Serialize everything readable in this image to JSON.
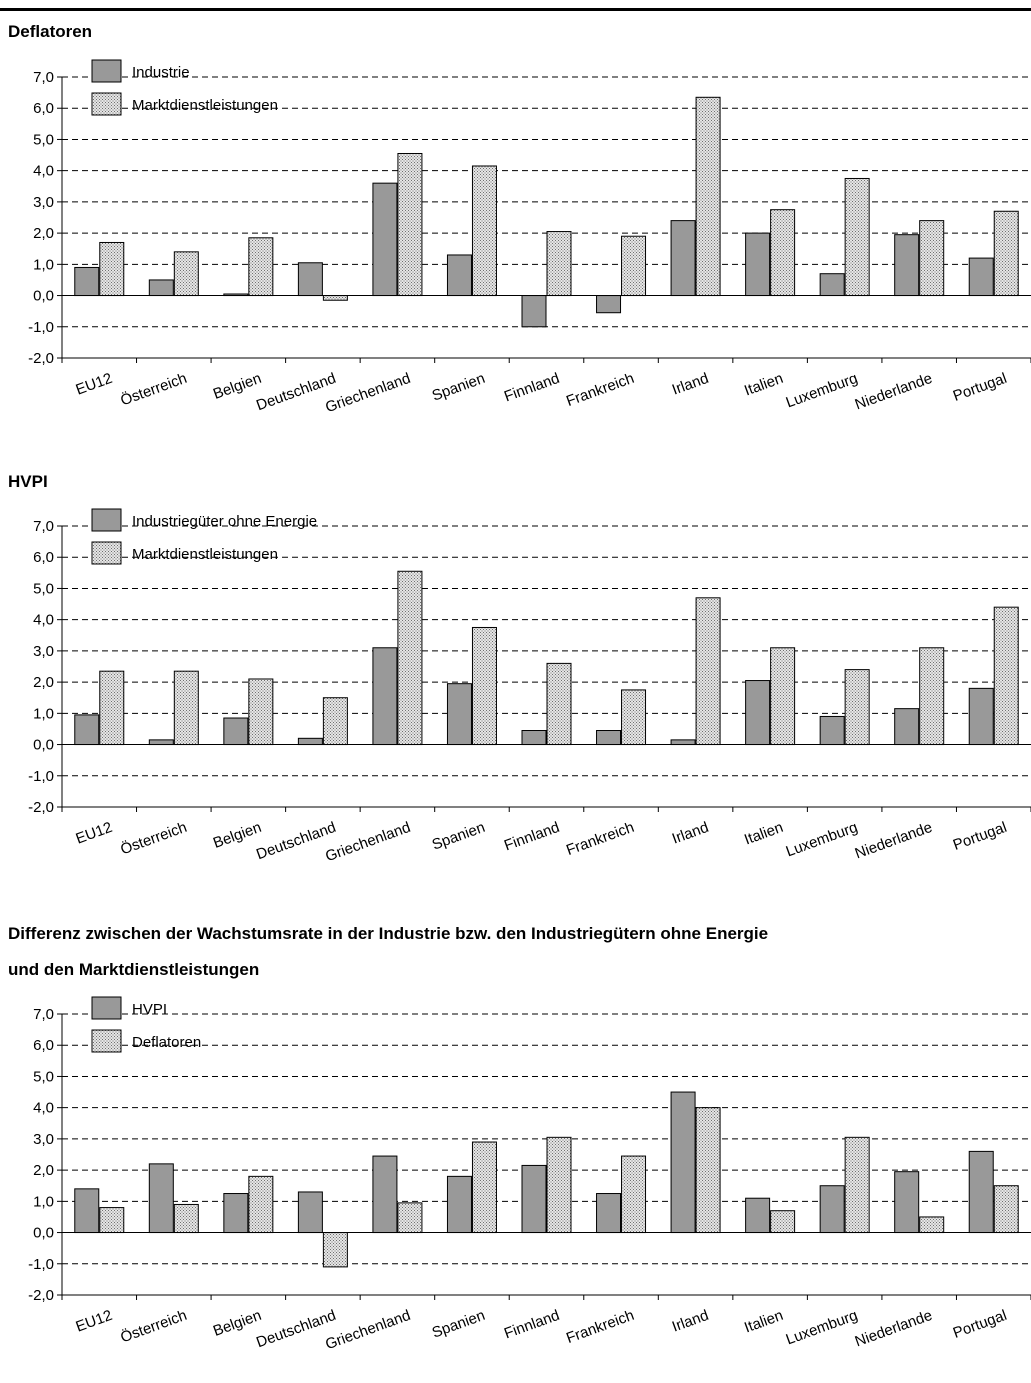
{
  "titles": {
    "chart1": "Deflatoren",
    "chart2": "HVPI",
    "chart3_line1": "Differenz zwischen der Wachstumsrate in der Industrie bzw. den Industriegütern ohne Energie",
    "chart3_line2": "und den Marktdienstleistungen"
  },
  "colors": {
    "solid": "#999999",
    "dotted_bg": "#e6e6e6",
    "dotted_dot": "#6f6f6f"
  },
  "chart_data": [
    {
      "type": "bar",
      "title": "Deflatoren",
      "categories": [
        "EU12",
        "Österreich",
        "Belgien",
        "Deutschland",
        "Griechenland",
        "Spanien",
        "Finnland",
        "Frankreich",
        "Irland",
        "Italien",
        "Luxemburg",
        "Niederlande",
        "Portugal"
      ],
      "series": [
        {
          "name": "Industrie",
          "style": "solid",
          "values": [
            0.9,
            0.5,
            0.05,
            1.05,
            3.6,
            1.3,
            -1.0,
            -0.55,
            2.4,
            2.0,
            0.7,
            1.95,
            1.2
          ]
        },
        {
          "name": "Marktdienstleistungen",
          "style": "dotted",
          "values": [
            1.7,
            1.4,
            1.85,
            -0.15,
            4.55,
            4.15,
            2.05,
            1.9,
            6.35,
            2.75,
            3.75,
            2.4,
            2.7
          ]
        }
      ],
      "ylim": [
        -2.0,
        7.0
      ],
      "yticks": [
        "7,0",
        "6,0",
        "5,0",
        "4,0",
        "3,0",
        "2,0",
        "1,0",
        "0,0",
        "-1,0",
        "-2,0"
      ],
      "grid": "dashed horizontal",
      "legend": "top-left"
    },
    {
      "type": "bar",
      "title": "HVPI",
      "categories": [
        "EU12",
        "Österreich",
        "Belgien",
        "Deutschland",
        "Griechenland",
        "Spanien",
        "Finnland",
        "Frankreich",
        "Irland",
        "Italien",
        "Luxemburg",
        "Niederlande",
        "Portugal"
      ],
      "series": [
        {
          "name": "Industriegüter ohne Energie",
          "style": "solid",
          "values": [
            0.95,
            0.15,
            0.85,
            0.2,
            3.1,
            1.95,
            0.45,
            0.45,
            0.15,
            2.05,
            0.9,
            1.15,
            1.8
          ]
        },
        {
          "name": "Marktdienstleistungen",
          "style": "dotted",
          "values": [
            2.35,
            2.35,
            2.1,
            1.5,
            5.55,
            3.75,
            2.6,
            1.75,
            4.7,
            3.1,
            2.4,
            3.1,
            4.4
          ]
        }
      ],
      "ylim": [
        -2.0,
        7.0
      ],
      "yticks": [
        "7,0",
        "6,0",
        "5,0",
        "4,0",
        "3,0",
        "2,0",
        "1,0",
        "0,0",
        "-1,0",
        "-2,0"
      ],
      "grid": "dashed horizontal",
      "legend": "top-left"
    },
    {
      "type": "bar",
      "title": "Differenz zwischen der Wachstumsrate in der Industrie bzw. den Industriegütern ohne Energie und den Marktdienstleistungen",
      "categories": [
        "EU12",
        "Österreich",
        "Belgien",
        "Deutschland",
        "Griechenland",
        "Spanien",
        "Finnland",
        "Frankreich",
        "Irland",
        "Italien",
        "Luxemburg",
        "Niederlande",
        "Portugal"
      ],
      "series": [
        {
          "name": "HVPI",
          "style": "solid",
          "values": [
            1.4,
            2.2,
            1.25,
            1.3,
            2.45,
            1.8,
            2.15,
            1.25,
            4.5,
            1.1,
            1.5,
            1.95,
            2.6
          ]
        },
        {
          "name": "Deflatoren",
          "style": "dotted",
          "values": [
            0.8,
            0.9,
            1.8,
            -1.1,
            0.95,
            2.9,
            3.05,
            2.45,
            4.0,
            0.7,
            3.05,
            0.5,
            1.5
          ]
        }
      ],
      "ylim": [
        -2.0,
        7.0
      ],
      "yticks": [
        "7,0",
        "6,0",
        "5,0",
        "4,0",
        "3,0",
        "2,0",
        "1,0",
        "0,0",
        "-1,0",
        "-2,0"
      ],
      "grid": "dashed horizontal",
      "legend": "top-left"
    }
  ]
}
